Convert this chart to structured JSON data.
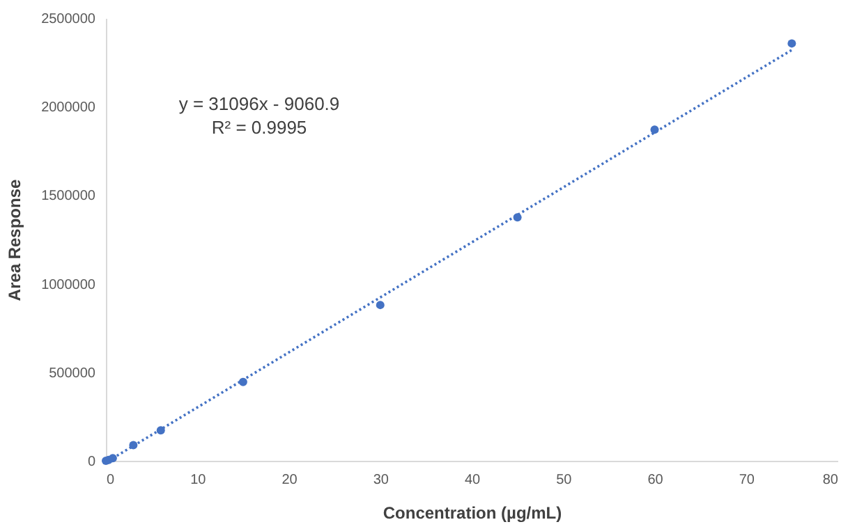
{
  "chart_data": {
    "type": "scatter",
    "xlabel": "Concentration (µg/mL)",
    "ylabel": "Area Response",
    "annotations": [
      "y = 31096x - 9060.9",
      "R² = 0.9995"
    ],
    "xlim": [
      0,
      80
    ],
    "xticks": [
      0,
      10,
      20,
      30,
      40,
      50,
      60,
      70,
      80
    ],
    "ylim": [
      0,
      2500000
    ],
    "yticks": [
      0,
      500000,
      1000000,
      1500000,
      2000000,
      2500000
    ],
    "grid": false,
    "series": [
      {
        "color": "#4472c4",
        "marker": "circle",
        "x": [
          0,
          0.3,
          0.75,
          3,
          6,
          15,
          30,
          45,
          60,
          75
        ],
        "values": [
          0,
          5000,
          15000,
          88000,
          172000,
          445000,
          880000,
          1375000,
          1870000,
          2357000
        ]
      },
      {
        "type": "line",
        "color": "#4472c4",
        "line_style": "dotted",
        "marker": "none",
        "x": [
          0.29,
          75
        ],
        "values": [
          0,
          2320000
        ]
      }
    ]
  }
}
